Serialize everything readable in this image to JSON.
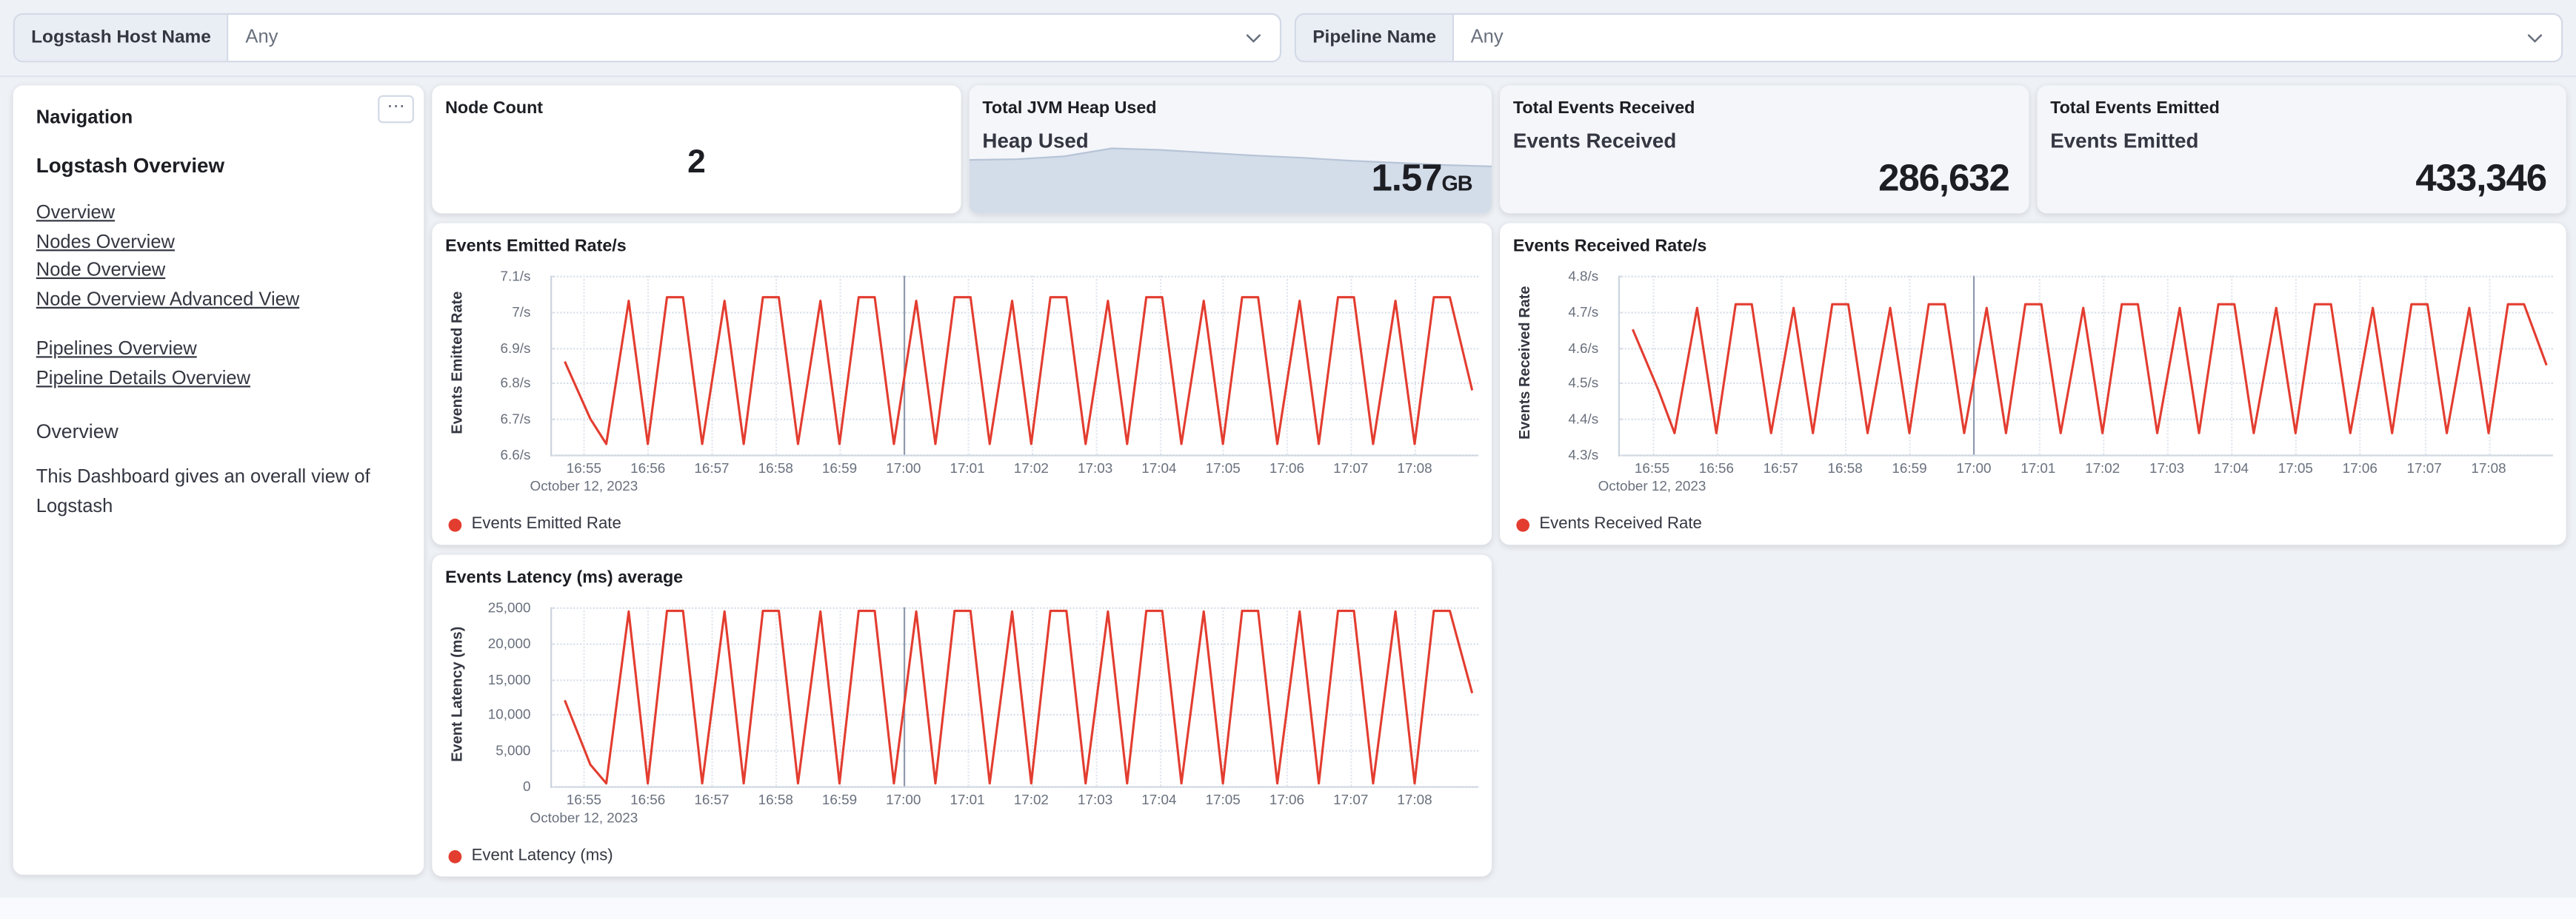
{
  "filter_bar": {
    "host_filter": {
      "label": "Logstash Host Name",
      "value": "Any"
    },
    "pipeline_filter": {
      "label": "Pipeline Name",
      "value": "Any"
    }
  },
  "navigation": {
    "panel_title": "Navigation",
    "options_icon": "⋯",
    "section_heading": "Logstash Overview",
    "links_group1": [
      "Overview",
      "Nodes Overview",
      "Node Overview",
      "Node Overview Advanced View"
    ],
    "links_group2": [
      "Pipelines Overview",
      "Pipeline Details Overview"
    ],
    "subheading": "Overview",
    "description": "This Dashboard gives an overall view of Logstash"
  },
  "metrics": {
    "node_count": {
      "title": "Node Count",
      "value": "2"
    },
    "jvm_heap": {
      "title": "Total JVM Heap Used",
      "label": "Heap Used",
      "value": "1.57",
      "unit": "GB",
      "sparkline_fill": "#cdd8e5",
      "sparkline_stroke": "#b7c4d6",
      "sparkline_shape": [
        0.74,
        0.75,
        0.79,
        0.9,
        0.88,
        0.84,
        0.8,
        0.77,
        0.73,
        0.7,
        0.67,
        0.65
      ]
    },
    "events_received": {
      "title": "Total Events Received",
      "label": "Events Received",
      "value": "286,632"
    },
    "events_emitted": {
      "title": "Total Events Emitted",
      "label": "Events Emitted",
      "value": "433,346"
    }
  },
  "chart_data": [
    {
      "type": "line",
      "title": "Events Emitted Rate/s",
      "ylabel": "Events Emitted Rate",
      "legend": "Events Emitted Rate",
      "color": "#e33d30",
      "ylim": [
        6.6,
        7.1
      ],
      "y_ticks": [
        "7.1/s",
        "7/s",
        "6.9/s",
        "6.8/s",
        "6.7/s",
        "6.6/s"
      ],
      "x_ticks": [
        "16:55",
        "16:56",
        "16:57",
        "16:58",
        "16:59",
        "17:00",
        "17:01",
        "17:02",
        "17:03",
        "17:04",
        "17:05",
        "17:06",
        "17:07",
        "17:08"
      ],
      "x_date_label": "October 12, 2023",
      "x_major_tick": "17:00",
      "t_minutes": [
        -0.3,
        0.1,
        0.35,
        0.7,
        1.0,
        1.3,
        1.55,
        1.85,
        2.2,
        2.5,
        2.8,
        3.05,
        3.35,
        3.7,
        4.0,
        4.3,
        4.55,
        4.85,
        5.2,
        5.5,
        5.8,
        6.05,
        6.35,
        6.7,
        7.0,
        7.3,
        7.55,
        7.85,
        8.2,
        8.5,
        8.8,
        9.05,
        9.35,
        9.7,
        10.0,
        10.3,
        10.55,
        10.85,
        11.2,
        11.5,
        11.8,
        12.05,
        12.35,
        12.7,
        13.0,
        13.3,
        13.55,
        13.9
      ],
      "values": [
        6.86,
        6.7,
        6.63,
        7.03,
        6.63,
        7.04,
        7.04,
        6.63,
        7.03,
        6.63,
        7.04,
        7.04,
        6.63,
        7.03,
        6.63,
        7.04,
        7.04,
        6.63,
        7.03,
        6.63,
        7.04,
        7.04,
        6.63,
        7.03,
        6.63,
        7.04,
        7.04,
        6.63,
        7.03,
        6.63,
        7.04,
        7.04,
        6.63,
        7.03,
        6.63,
        7.04,
        7.04,
        6.63,
        7.03,
        6.63,
        7.04,
        7.04,
        6.63,
        7.03,
        6.63,
        7.04,
        7.04,
        6.78
      ]
    },
    {
      "type": "line",
      "title": "Events Received Rate/s",
      "ylabel": "Events Received Rate",
      "legend": "Events Received Rate",
      "color": "#e33d30",
      "ylim": [
        4.3,
        4.8
      ],
      "y_ticks": [
        "4.8/s",
        "4.7/s",
        "4.6/s",
        "4.5/s",
        "4.4/s",
        "4.3/s"
      ],
      "x_ticks": [
        "16:55",
        "16:56",
        "16:57",
        "16:58",
        "16:59",
        "17:00",
        "17:01",
        "17:02",
        "17:03",
        "17:04",
        "17:05",
        "17:06",
        "17:07",
        "17:08"
      ],
      "x_date_label": "October 12, 2023",
      "x_major_tick": "17:00",
      "t_minutes": [
        -0.3,
        0.1,
        0.35,
        0.7,
        1.0,
        1.3,
        1.55,
        1.85,
        2.2,
        2.5,
        2.8,
        3.05,
        3.35,
        3.7,
        4.0,
        4.3,
        4.55,
        4.85,
        5.2,
        5.5,
        5.8,
        6.05,
        6.35,
        6.7,
        7.0,
        7.3,
        7.55,
        7.85,
        8.2,
        8.5,
        8.8,
        9.05,
        9.35,
        9.7,
        10.0,
        10.3,
        10.55,
        10.85,
        11.2,
        11.5,
        11.8,
        12.05,
        12.35,
        12.7,
        13.0,
        13.3,
        13.55,
        13.9
      ],
      "values": [
        4.65,
        4.48,
        4.36,
        4.71,
        4.36,
        4.72,
        4.72,
        4.36,
        4.71,
        4.36,
        4.72,
        4.72,
        4.36,
        4.71,
        4.36,
        4.72,
        4.72,
        4.36,
        4.71,
        4.36,
        4.72,
        4.72,
        4.36,
        4.71,
        4.36,
        4.72,
        4.72,
        4.36,
        4.71,
        4.36,
        4.72,
        4.72,
        4.36,
        4.71,
        4.36,
        4.72,
        4.72,
        4.36,
        4.71,
        4.36,
        4.72,
        4.72,
        4.36,
        4.71,
        4.36,
        4.72,
        4.72,
        4.55
      ]
    },
    {
      "type": "line",
      "title": "Events Latency (ms) average",
      "ylabel": "Event Latency (ms)",
      "legend": "Event Latency (ms)",
      "color": "#e33d30",
      "ylim": [
        0,
        25000
      ],
      "y_ticks": [
        "25,000",
        "20,000",
        "15,000",
        "10,000",
        "5,000",
        "0"
      ],
      "x_ticks": [
        "16:55",
        "16:56",
        "16:57",
        "16:58",
        "16:59",
        "17:00",
        "17:01",
        "17:02",
        "17:03",
        "17:04",
        "17:05",
        "17:06",
        "17:07",
        "17:08"
      ],
      "x_date_label": "October 12, 2023",
      "x_major_tick": "17:00",
      "t_minutes": [
        -0.3,
        0.1,
        0.35,
        0.7,
        1.0,
        1.3,
        1.55,
        1.85,
        2.2,
        2.5,
        2.8,
        3.05,
        3.35,
        3.7,
        4.0,
        4.3,
        4.55,
        4.85,
        5.2,
        5.5,
        5.8,
        6.05,
        6.35,
        6.7,
        7.0,
        7.3,
        7.55,
        7.85,
        8.2,
        8.5,
        8.8,
        9.05,
        9.35,
        9.7,
        10.0,
        10.3,
        10.55,
        10.85,
        11.2,
        11.5,
        11.8,
        12.05,
        12.35,
        12.7,
        13.0,
        13.3,
        13.55,
        13.9
      ],
      "values": [
        12000,
        3000,
        400,
        24400,
        400,
        24500,
        24500,
        400,
        24400,
        400,
        24500,
        24500,
        400,
        24400,
        400,
        24500,
        24500,
        400,
        24400,
        400,
        24500,
        24500,
        400,
        24400,
        400,
        24500,
        24500,
        400,
        24400,
        400,
        24500,
        24500,
        400,
        24400,
        400,
        24500,
        24500,
        400,
        24400,
        400,
        24500,
        24500,
        400,
        24400,
        400,
        24500,
        24500,
        13000
      ]
    }
  ],
  "colors": {
    "series_red": "#e33d30",
    "page_background": "#eef1f6",
    "panel_border": "#d3dae6"
  }
}
